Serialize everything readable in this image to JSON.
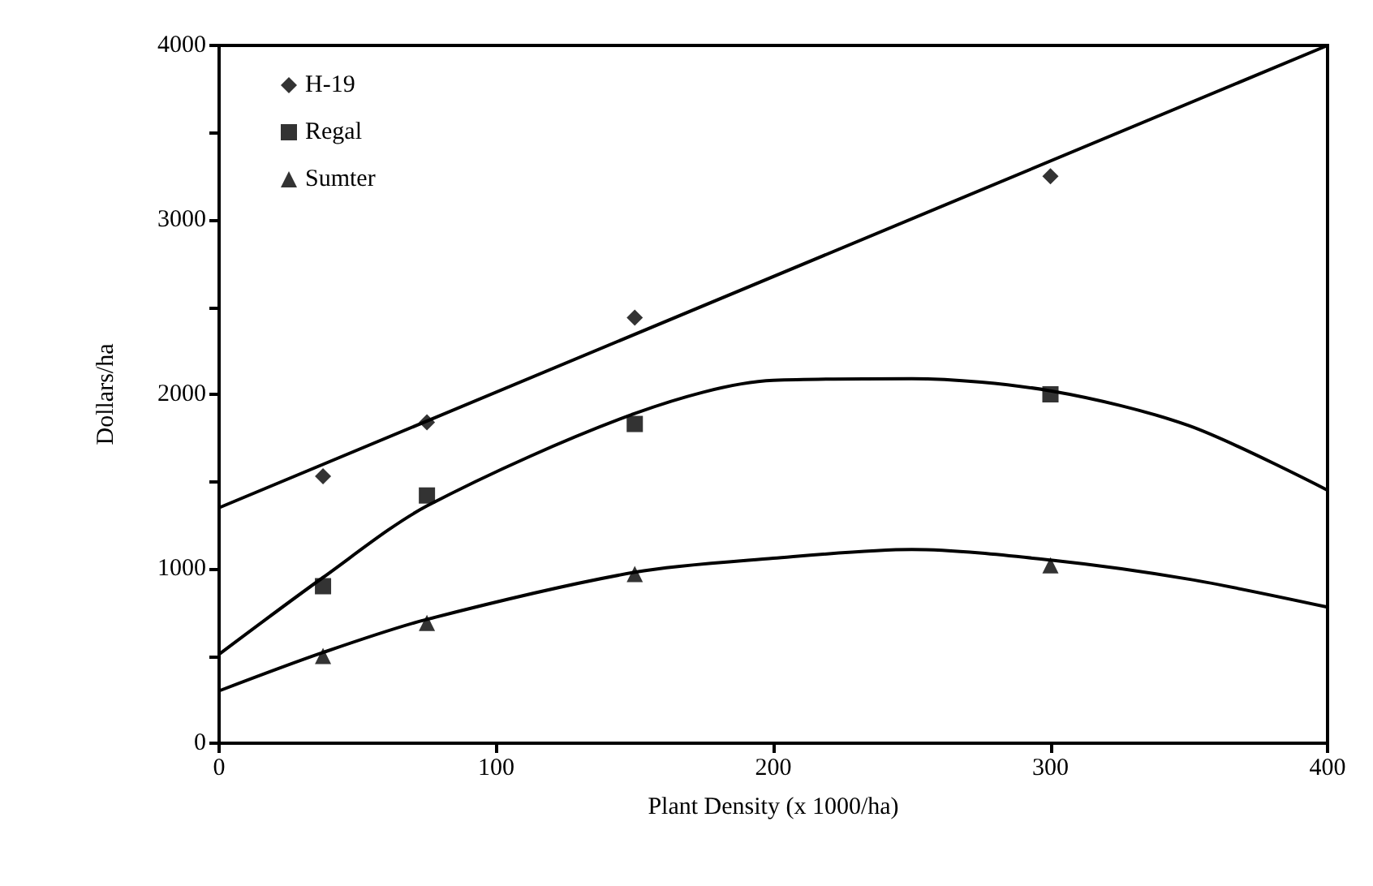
{
  "chart_data": {
    "type": "scatter",
    "xlabel": "Plant Density (x 1000/ha)",
    "ylabel": "Dollars/ha",
    "xlim": [
      0,
      400
    ],
    "ylim": [
      0,
      4000
    ],
    "xticks": [
      0,
      100,
      200,
      300,
      400
    ],
    "yticks": [
      0,
      {
        "value": 500,
        "label": null
      },
      1000,
      {
        "value": 1500,
        "label": null
      },
      2000,
      {
        "value": 2500,
        "label": null
      },
      3000,
      {
        "value": 3500,
        "label": null
      },
      4000
    ],
    "grid": false,
    "legend": "top left",
    "series": [
      {
        "name": "H-19",
        "color": "#000000",
        "marker": "diamond",
        "x": [
          37.5,
          75,
          150,
          300
        ],
        "values": [
          1530,
          1840,
          2440,
          3250
        ]
      },
      {
        "name": "Regal",
        "color": "#000000",
        "marker": "square",
        "x": [
          37.5,
          75,
          150,
          300
        ],
        "values": [
          900,
          1420,
          1830,
          2000
        ]
      },
      {
        "name": "Sumter",
        "color": "#000000",
        "marker": "triangle",
        "x": [
          37.5,
          75,
          150,
          300
        ],
        "values": [
          500,
          690,
          970,
          1020
        ]
      },
      {
        "type": "line",
        "color": "#000000",
        "marker": "none",
        "x": [
          0,
          400
        ],
        "values": [
          1350,
          4000
        ]
      },
      {
        "type": "line",
        "color": "#000000",
        "marker": "none",
        "x": [
          0,
          37.5,
          75,
          150,
          200,
          250,
          300,
          350,
          400
        ],
        "values": [
          510,
          950,
          1360,
          1890,
          2080,
          2090,
          2020,
          1820,
          1450
        ]
      },
      {
        "type": "line",
        "color": "#000000",
        "marker": "none",
        "x": [
          0,
          37.5,
          75,
          150,
          200,
          250,
          300,
          350,
          400
        ],
        "values": [
          300,
          520,
          710,
          980,
          1060,
          1110,
          1050,
          940,
          780
        ]
      }
    ]
  }
}
